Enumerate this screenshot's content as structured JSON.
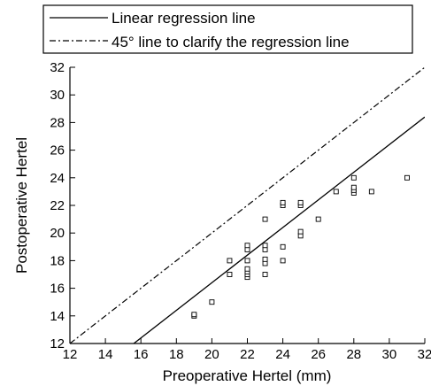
{
  "chart_data": {
    "type": "scatter",
    "xlabel": "Preoperative Hertel (mm)",
    "ylabel": "Postoperative Hertel",
    "xlim": [
      12,
      32
    ],
    "ylim": [
      12,
      32
    ],
    "x_ticks": [
      12,
      14,
      16,
      18,
      20,
      22,
      24,
      26,
      28,
      30,
      32
    ],
    "y_ticks": [
      12,
      14,
      16,
      18,
      20,
      22,
      24,
      26,
      28,
      30,
      32
    ],
    "legend": {
      "position": "top",
      "entries": [
        {
          "label": "Linear regression line",
          "style": "solid"
        },
        {
          "label": "45° line to clarify the regression line",
          "style": "dash-dot"
        }
      ]
    },
    "regression_line": {
      "slope": 1.0,
      "intercept": -3.6
    },
    "reference_line": {
      "slope": 1.0,
      "intercept": 0
    },
    "points": [
      {
        "x": 19,
        "y": 14.0
      },
      {
        "x": 19,
        "y": 14.1
      },
      {
        "x": 20,
        "y": 15
      },
      {
        "x": 21,
        "y": 17
      },
      {
        "x": 21,
        "y": 18
      },
      {
        "x": 22,
        "y": 16.8
      },
      {
        "x": 22,
        "y": 17.0
      },
      {
        "x": 22,
        "y": 17.2
      },
      {
        "x": 22,
        "y": 17.4
      },
      {
        "x": 22,
        "y": 18
      },
      {
        "x": 22,
        "y": 18.8
      },
      {
        "x": 22,
        "y": 19.1
      },
      {
        "x": 23,
        "y": 17
      },
      {
        "x": 23,
        "y": 17.8
      },
      {
        "x": 23,
        "y": 18.1
      },
      {
        "x": 23,
        "y": 18.8
      },
      {
        "x": 23,
        "y": 19.1
      },
      {
        "x": 23,
        "y": 21
      },
      {
        "x": 24,
        "y": 18
      },
      {
        "x": 24,
        "y": 19
      },
      {
        "x": 24,
        "y": 22
      },
      {
        "x": 24,
        "y": 22.2
      },
      {
        "x": 25,
        "y": 19.8
      },
      {
        "x": 25,
        "y": 20.1
      },
      {
        "x": 25,
        "y": 22
      },
      {
        "x": 25,
        "y": 22.2
      },
      {
        "x": 26,
        "y": 21
      },
      {
        "x": 27,
        "y": 23
      },
      {
        "x": 28,
        "y": 22.9
      },
      {
        "x": 28,
        "y": 23.1
      },
      {
        "x": 28,
        "y": 23.3
      },
      {
        "x": 28,
        "y": 24
      },
      {
        "x": 29,
        "y": 23
      },
      {
        "x": 31,
        "y": 24
      }
    ]
  }
}
